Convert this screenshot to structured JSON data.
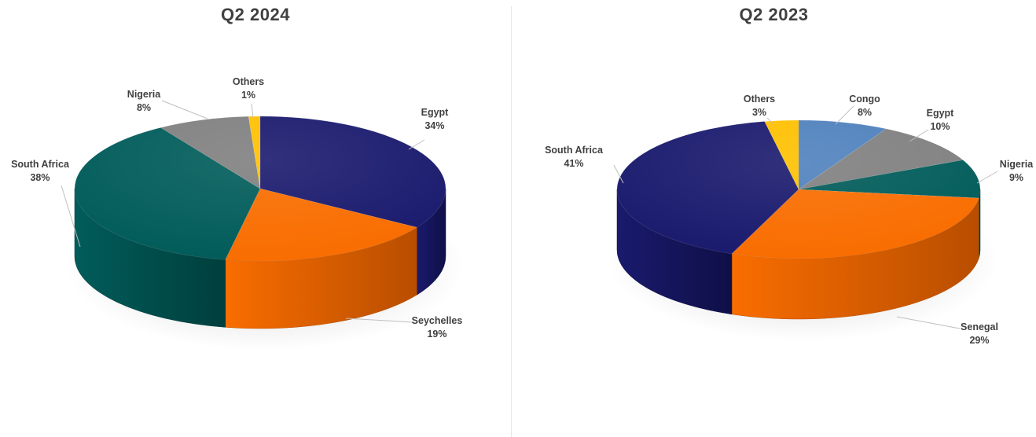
{
  "chart_data": [
    {
      "type": "pie",
      "title": "Q2 2024",
      "slices": [
        {
          "label": "Egypt",
          "value": 34,
          "pct_label": "34%",
          "color": "#1a1a6e",
          "side_color": "#0f0f47"
        },
        {
          "label": "Seychelles",
          "value": 19,
          "pct_label": "19%",
          "color": "#f96d00",
          "side_color": "#b84e00"
        },
        {
          "label": "South Africa",
          "value": 38,
          "pct_label": "38%",
          "color": "#015c5a",
          "side_color": "#003f3d"
        },
        {
          "label": "Nigeria",
          "value": 8,
          "pct_label": "8%",
          "color": "#808080",
          "side_color": "#5a5a5a"
        },
        {
          "label": "Others",
          "value": 1,
          "pct_label": "1%",
          "color": "#ffc000",
          "side_color": "#c79600"
        }
      ]
    },
    {
      "type": "pie",
      "title": "Q2 2023",
      "slices": [
        {
          "label": "Congo",
          "value": 8,
          "pct_label": "8%",
          "color": "#4f81bd",
          "side_color": "#365d8c"
        },
        {
          "label": "Egypt",
          "value": 10,
          "pct_label": "10%",
          "color": "#808080",
          "side_color": "#5a5a5a"
        },
        {
          "label": "Nigeria",
          "value": 9,
          "pct_label": "9%",
          "color": "#015c5a",
          "side_color": "#003f3d"
        },
        {
          "label": "Senegal",
          "value": 29,
          "pct_label": "29%",
          "color": "#f96d00",
          "side_color": "#b84e00"
        },
        {
          "label": "South Africa",
          "value": 41,
          "pct_label": "41%",
          "color": "#1a1a6e",
          "side_color": "#0f0f47"
        },
        {
          "label": "Others",
          "value": 3,
          "pct_label": "3%",
          "color": "#ffc000",
          "side_color": "#c79600"
        }
      ]
    }
  ]
}
